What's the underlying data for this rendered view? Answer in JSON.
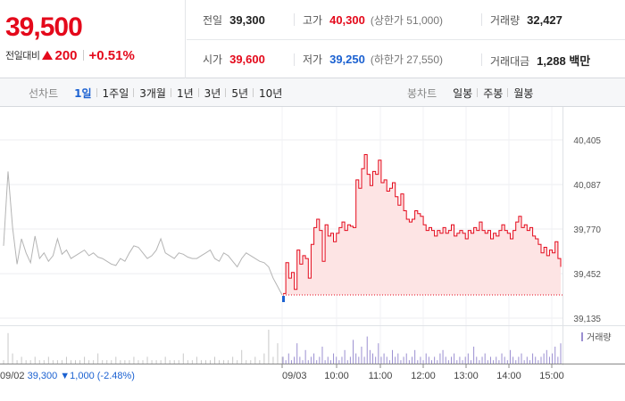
{
  "summary": {
    "price": "39,500",
    "change_label": "전일대비",
    "change_value": "200",
    "change_pct": "+0.51%",
    "stats": {
      "prev_close": {
        "label": "전일",
        "value": "39,300"
      },
      "high": {
        "label": "고가",
        "value": "40,300",
        "sub": "(상한가 51,000)"
      },
      "volume": {
        "label": "거래량",
        "value": "32,427"
      },
      "open": {
        "label": "시가",
        "value": "39,600"
      },
      "low": {
        "label": "저가",
        "value": "39,250",
        "sub": "(하한가 27,550)"
      },
      "amount": {
        "label": "거래대금",
        "value": "1,288 백만"
      }
    }
  },
  "tabs": {
    "line_title": "선차트",
    "line_tabs": [
      "1일",
      "1주일",
      "3개월",
      "1년",
      "3년",
      "5년",
      "10년"
    ],
    "active_line_tab": 0,
    "candle_title": "봉차트",
    "candle_tabs": [
      "일봉",
      "주봉",
      "월봉"
    ]
  },
  "chart_data": {
    "type": "line",
    "title": "",
    "xlabel": "",
    "ylabel": "",
    "y_ticks": [
      "40,405",
      "40,087",
      "39,770",
      "39,452",
      "39,135"
    ],
    "ylim": [
      39135,
      40405
    ],
    "x_tick_labels": [
      "09/03",
      "10:00",
      "11:00",
      "12:00",
      "13:00",
      "14:00",
      "15:00"
    ],
    "baseline": 39300,
    "colors": {
      "prev_day": "#b4b4b4",
      "today": "#e4091b",
      "fill": "#fde4e4",
      "volume": "#9b8fd1",
      "blue_low": "#1b61d1"
    },
    "legend": "거래량",
    "prev_day": {
      "date_label": "09/02",
      "close": "39,300",
      "change": "1,000",
      "change_pct": "(-2.48%)",
      "series": [
        39650,
        40180,
        39780,
        39520,
        39700,
        39600,
        39530,
        39720,
        39560,
        39600,
        39540,
        39580,
        39700,
        39590,
        39620,
        39560,
        39580,
        39600,
        39620,
        39580,
        39600,
        39570,
        39560,
        39540,
        39520,
        39510,
        39560,
        39540,
        39600,
        39650,
        39640,
        39600,
        39560,
        39580,
        39620,
        39700,
        39600,
        39580,
        39560,
        39600,
        39590,
        39570,
        39560,
        39560,
        39580,
        39600,
        39620,
        39560,
        39540,
        39600,
        39580,
        39540,
        39500,
        39560,
        39600,
        39580,
        39560,
        39540,
        39530,
        39500,
        39420,
        39360,
        39300
      ]
    },
    "today": {
      "series": [
        39310,
        39530,
        39420,
        39460,
        39340,
        39620,
        39520,
        39580,
        39560,
        39420,
        39660,
        39780,
        39840,
        39760,
        39540,
        39800,
        39720,
        39740,
        39680,
        39740,
        39780,
        39820,
        39760,
        39800,
        39790,
        39780,
        40120,
        40060,
        40200,
        40300,
        40160,
        40080,
        40180,
        40160,
        40260,
        40100,
        40120,
        40040,
        40060,
        40100,
        40000,
        39940,
        40020,
        39900,
        39840,
        39820,
        39840,
        39900,
        39880,
        39860,
        39800,
        39760,
        39780,
        39760,
        39720,
        39760,
        39740,
        39780,
        39740,
        39760,
        39800,
        39720,
        39740,
        39760,
        39740,
        39700,
        39760,
        39740,
        39780,
        39760,
        39820,
        39760,
        39740,
        39760,
        39700,
        39740,
        39720,
        39760,
        39800,
        39760,
        39740,
        39700,
        39760,
        39820,
        39860,
        39780,
        39800,
        39760,
        39780,
        39720,
        39700,
        39660,
        39600,
        39640,
        39580,
        39620,
        39600,
        39680,
        39560,
        39500
      ],
      "volume": [
        2,
        1,
        3,
        1,
        2,
        6,
        2,
        1,
        4,
        1,
        2,
        3,
        1,
        2,
        5,
        1,
        2,
        1,
        3,
        2,
        1,
        2,
        4,
        1,
        2,
        7,
        3,
        2,
        5,
        2,
        8,
        4,
        3,
        2,
        6,
        2,
        3,
        2,
        1,
        4,
        2,
        3,
        1,
        2,
        3,
        1,
        2,
        4,
        1,
        2,
        1,
        3,
        2,
        1,
        2,
        1,
        3,
        4,
        2,
        1,
        2,
        3,
        1,
        2,
        1,
        2,
        3,
        1,
        5,
        2,
        1,
        2,
        3,
        1,
        2,
        1,
        2,
        1,
        3,
        2,
        1,
        4,
        2,
        1,
        2,
        3,
        1,
        2,
        1,
        3,
        2,
        1,
        2,
        3,
        4,
        2,
        3,
        5,
        2,
        6
      ]
    },
    "prev_volume": [
      1,
      9,
      3,
      1,
      2,
      1,
      1,
      2,
      1,
      1,
      2,
      1,
      1,
      1,
      2,
      1,
      1,
      1,
      2,
      1,
      1,
      3,
      1,
      1,
      1,
      2,
      1,
      1,
      1,
      2,
      1,
      1,
      2,
      1,
      1,
      1,
      2,
      1,
      1,
      1,
      3,
      1,
      1,
      2,
      1,
      1,
      1,
      2,
      1,
      1,
      1,
      2,
      1,
      4,
      1,
      1,
      2,
      1,
      3,
      10,
      2,
      6,
      2
    ]
  }
}
